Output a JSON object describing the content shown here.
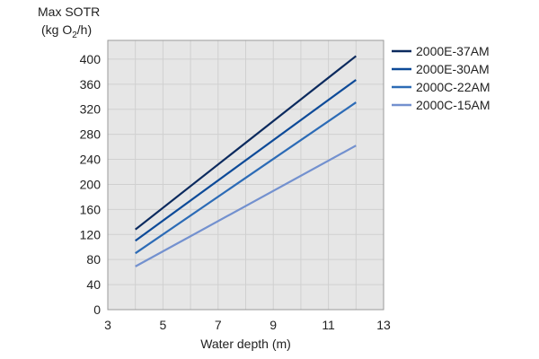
{
  "chart_data": {
    "type": "line",
    "title": "",
    "ylabel_line1": "Max SOTR",
    "ylabel_line2": "(kg O",
    "ylabel_sub": "2",
    "ylabel_end": "/h)",
    "xlabel": "Water depth (m)",
    "xlim": [
      3,
      13
    ],
    "ylim": [
      0,
      430
    ],
    "xticks": [
      3,
      5,
      7,
      9,
      11,
      13
    ],
    "yticks": [
      0,
      40,
      80,
      120,
      160,
      200,
      240,
      280,
      320,
      360,
      400
    ],
    "grid": true,
    "legend_position": "right",
    "x": [
      4,
      12
    ],
    "series": [
      {
        "name": "2000E-37AM",
        "values": [
          128,
          405
        ],
        "color": "#0b2a5e"
      },
      {
        "name": "2000E-30AM",
        "values": [
          110,
          367
        ],
        "color": "#0d4a98"
      },
      {
        "name": "2000C-22AM",
        "values": [
          90,
          331
        ],
        "color": "#2c6bb6"
      },
      {
        "name": "2000C-15AM",
        "values": [
          69,
          262
        ],
        "color": "#7391cf"
      }
    ]
  }
}
